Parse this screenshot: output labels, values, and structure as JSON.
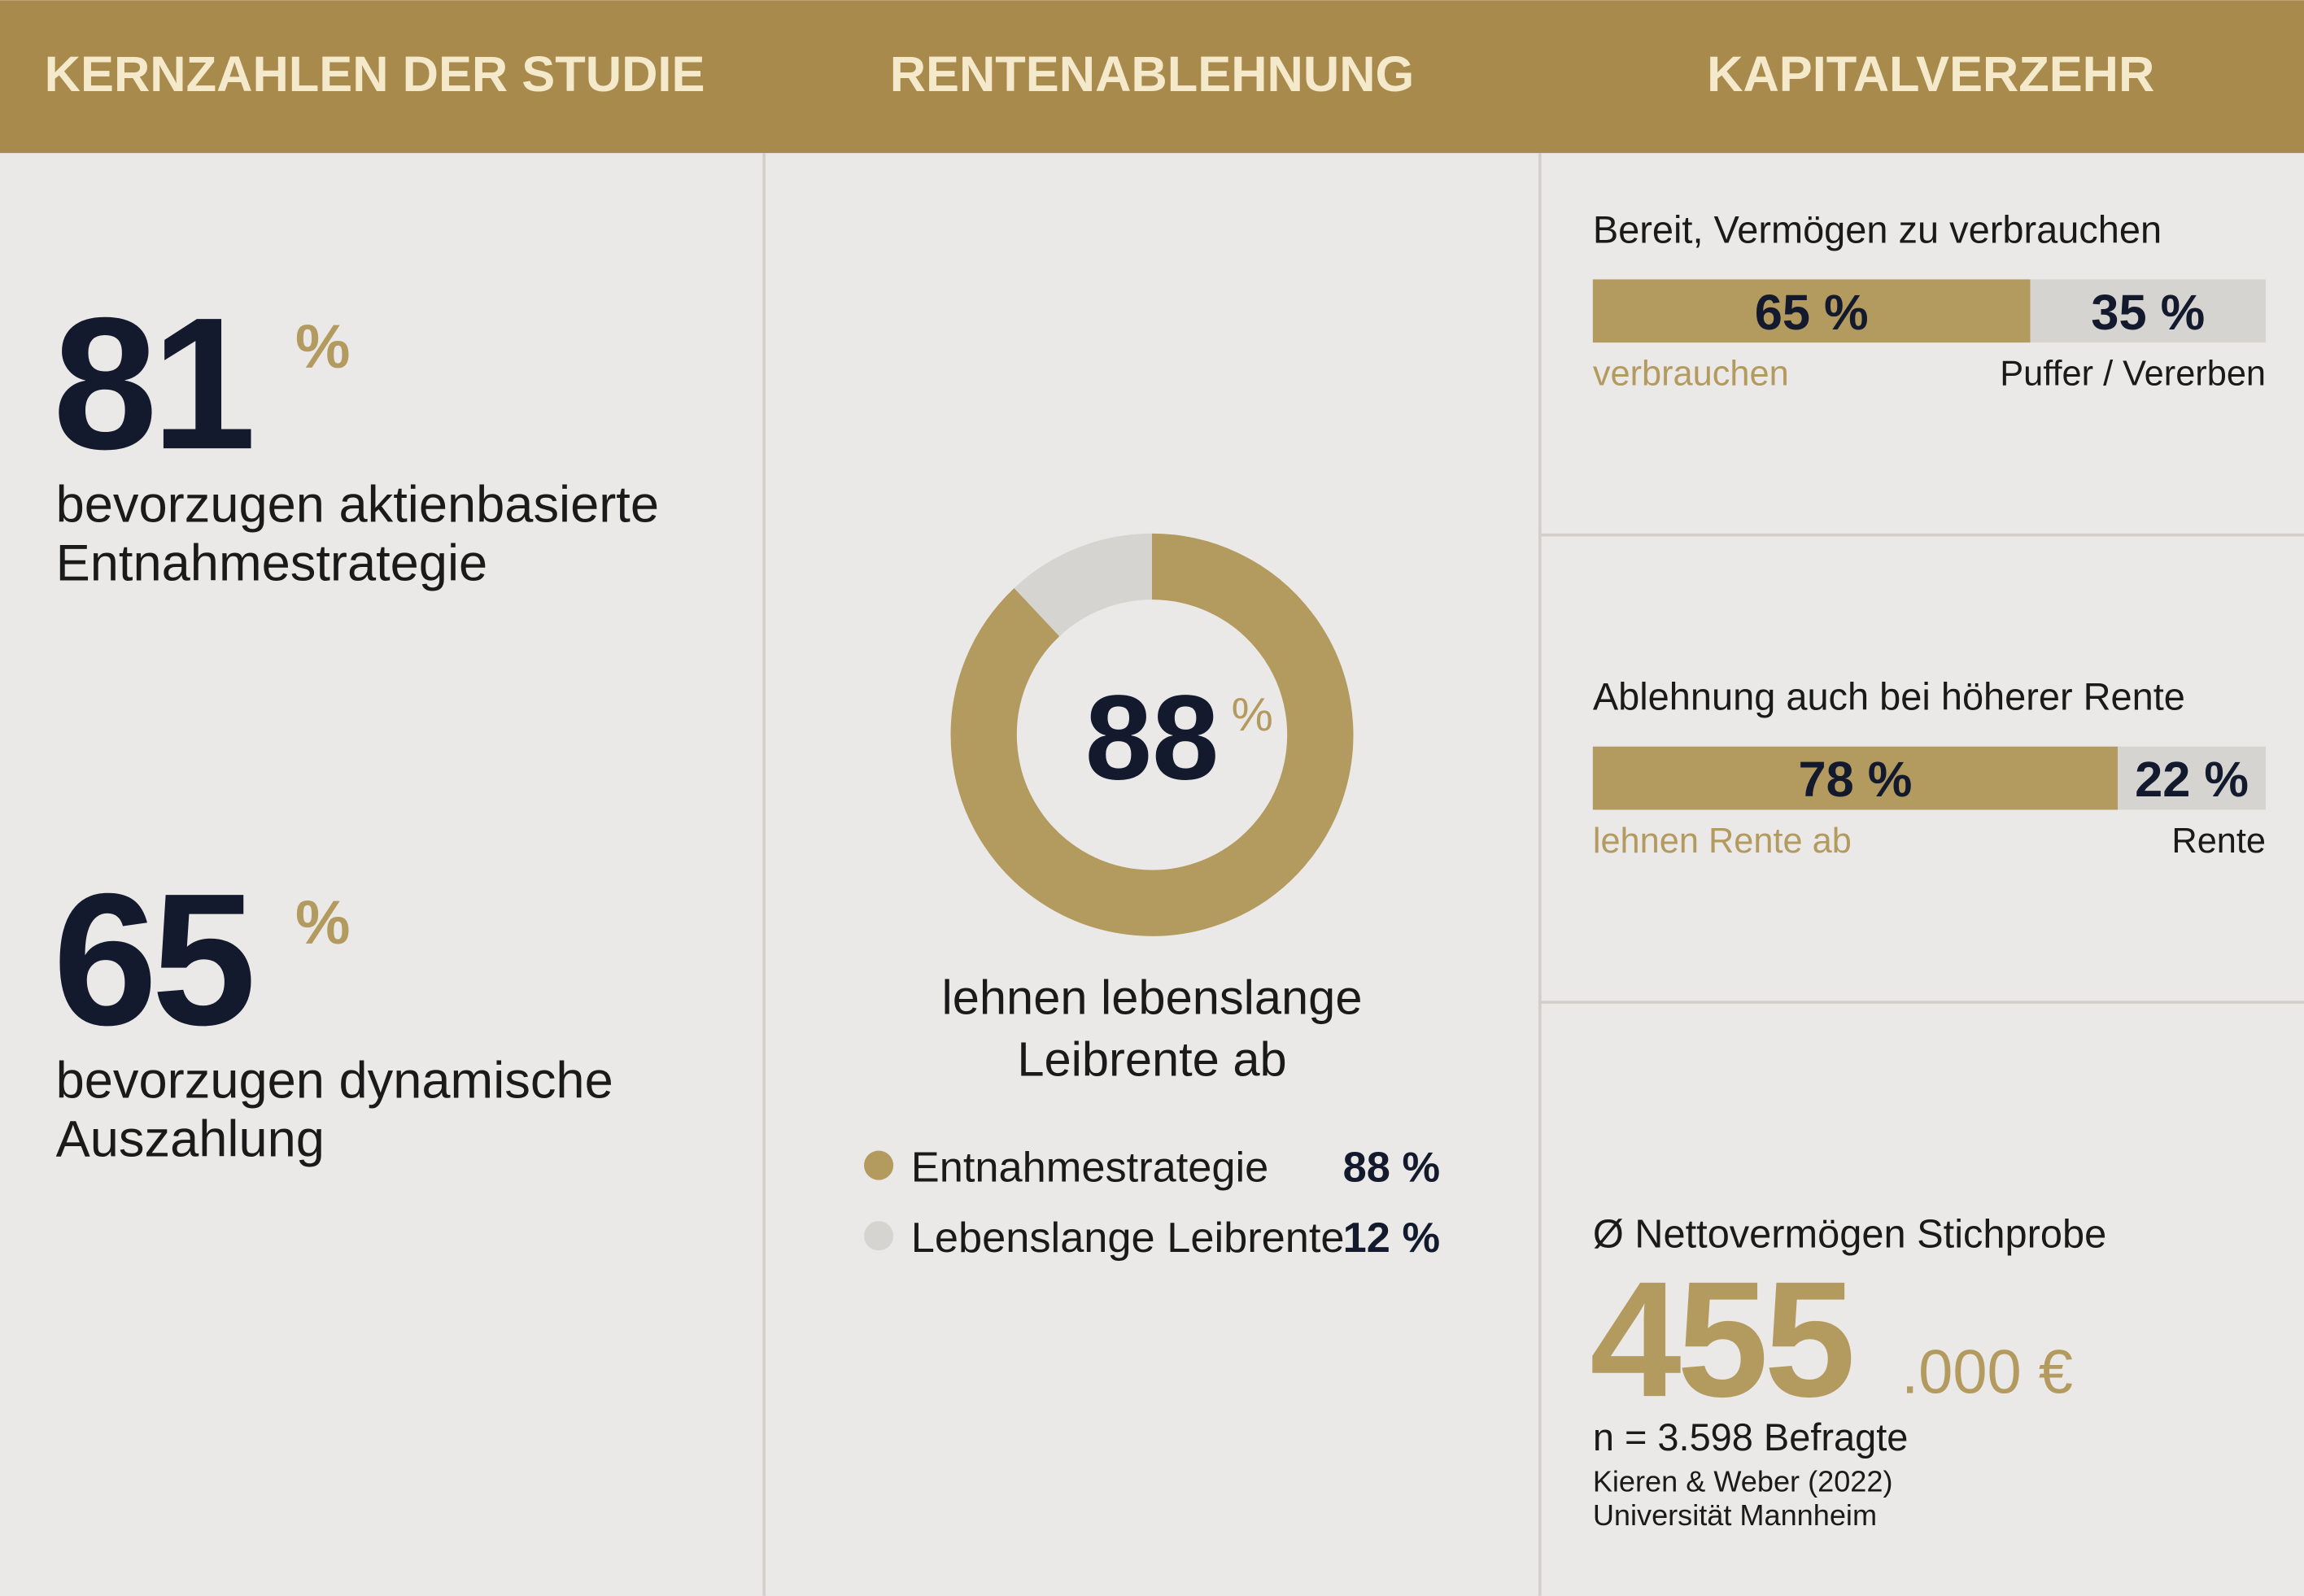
{
  "header": {
    "columns": [
      "KERNZAHLEN DER STUDIE",
      "RENTENABLEHNUNG",
      "KAPITALVERZEHR"
    ]
  },
  "key_figures": [
    {
      "value": 81,
      "unit": "%",
      "label_lines": [
        "bevorzugen aktienbasierte",
        "Entnahmestrategie"
      ]
    },
    {
      "value": 65,
      "unit": "%",
      "label_lines": [
        "bevorzugen dynamische",
        "Auszahlung"
      ]
    }
  ],
  "donut": {
    "type": "pie",
    "center_value": 88,
    "center_unit": "%",
    "caption_lines": [
      "lehnen lebenslange",
      "Leibrente ab"
    ],
    "segments": [
      {
        "name": "Entnahmestrategie",
        "value": 88,
        "value_label": "88 %",
        "color": "#b39a5f"
      },
      {
        "name": "Lebenslange Leibrente",
        "value": 12,
        "value_label": "12 %",
        "color": "#d6d4d0"
      }
    ]
  },
  "bars": [
    {
      "title": "Bereit, Vermögen zu verbrauchen",
      "segments": [
        {
          "name": "verbrauchen",
          "value": 65,
          "value_label": "65 %",
          "color": "#b39a5f"
        },
        {
          "name": "Puffer / Vererben",
          "value": 35,
          "value_label": "35 %",
          "color": "#d6d4d0"
        }
      ]
    },
    {
      "title": "Ablehnung auch bei höherer Rente",
      "segments": [
        {
          "name": "lehnen Rente ab",
          "value": 78,
          "value_label": "78 %",
          "color": "#b39a5f"
        },
        {
          "name": "Rente",
          "value": 22,
          "value_label": "22 %",
          "color": "#d6d4d0"
        }
      ]
    }
  ],
  "net_worth": {
    "title": "Ø Nettovermögen Stichprobe",
    "value_main": "455",
    "value_suffix": ".000 €",
    "sample": "n = 3.598 Befragte",
    "source_lines": [
      "Kieren & Weber (2022)",
      "Universität Mannheim"
    ]
  }
}
